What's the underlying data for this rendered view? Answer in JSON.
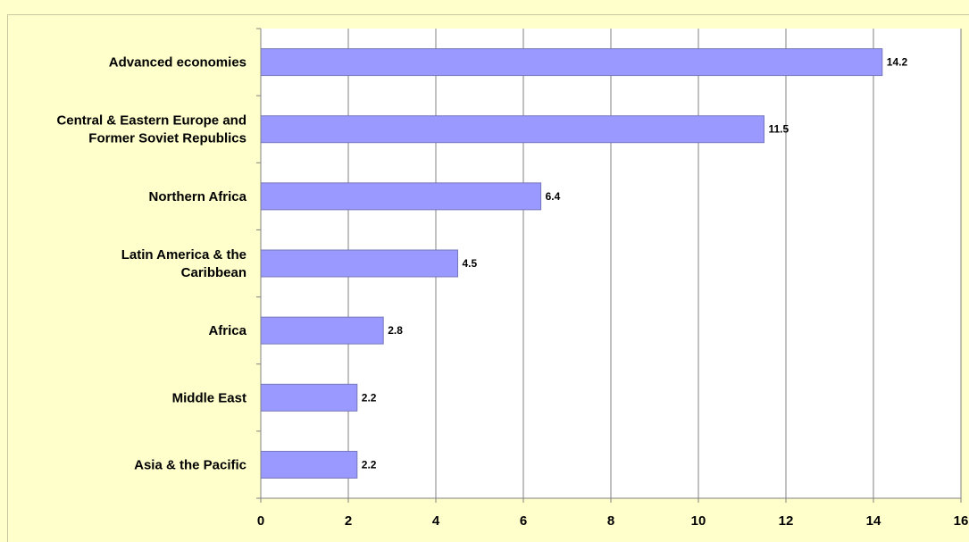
{
  "chart_data": {
    "type": "bar",
    "orientation": "horizontal",
    "categories": [
      [
        "Advanced economies"
      ],
      [
        "Central & Eastern Europe and",
        "Former Soviet Republics"
      ],
      [
        "Northern Africa"
      ],
      [
        "Latin America & the",
        "Caribbean"
      ],
      [
        "Africa"
      ],
      [
        "Middle East"
      ],
      [
        "Asia & the Pacific"
      ]
    ],
    "values": [
      14.2,
      11.5,
      6.4,
      4.5,
      2.8,
      2.2,
      2.2
    ],
    "data_labels": [
      "14.2",
      "11.5",
      "6.4",
      "4.5",
      "2.8",
      "2.2",
      "2.2"
    ],
    "xlim": [
      0,
      16
    ],
    "xticks": [
      "0",
      "2",
      "4",
      "6",
      "8",
      "10",
      "12",
      "14",
      "16"
    ],
    "grid": "vertical",
    "legend": "none"
  },
  "colors": {
    "background": "#FFFFCC",
    "plot_area": "#FFFFFF",
    "bar_fill": "#9999FF",
    "bar_stroke": "#7777BB",
    "gridline": "#808080"
  }
}
